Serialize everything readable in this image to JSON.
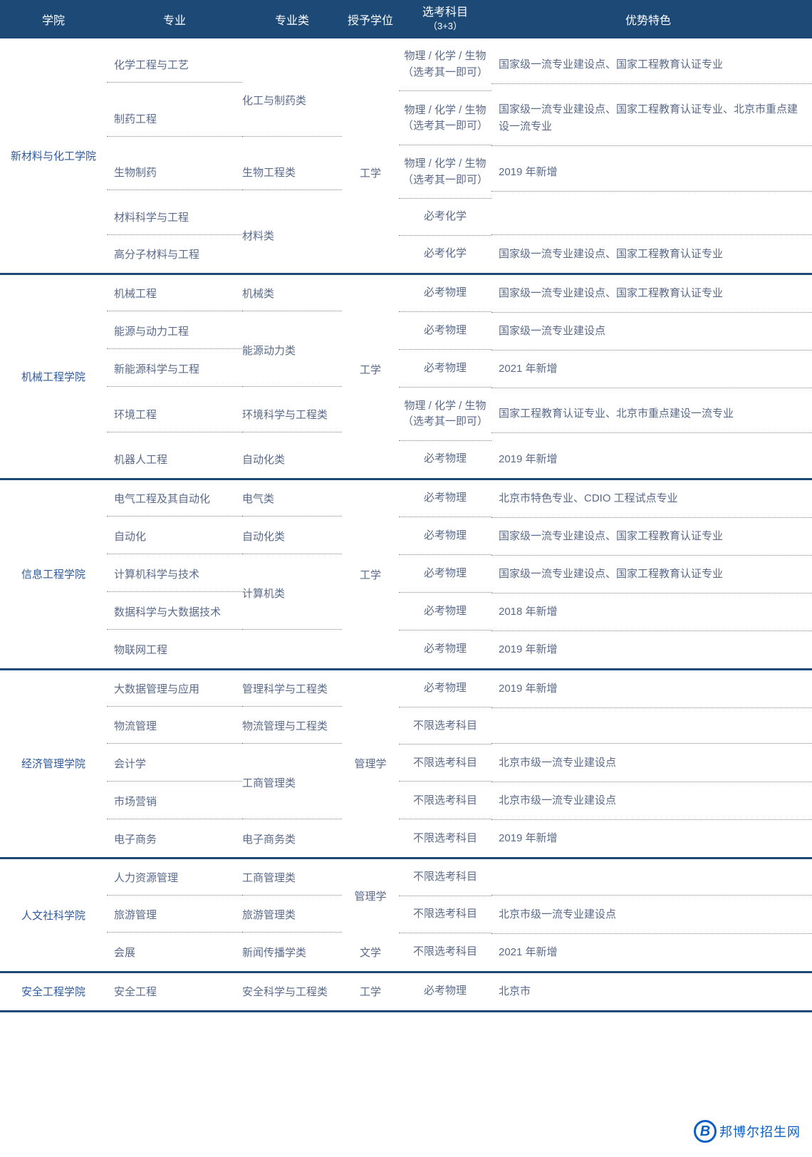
{
  "header": {
    "col1": "学院",
    "col2": "专业",
    "col3": "专业类",
    "col4": "授予学位",
    "col5a": "选考科目",
    "col5b": "（3+3）",
    "col6": "优势特色"
  },
  "colleges": [
    {
      "name": "新材料与化工学院",
      "degree": "工学",
      "rows": [
        {
          "major": "化学工程与工艺",
          "cat": "",
          "subj": "物理 / 化学 / 生物（选考其一即可）",
          "feat": "国家级一流专业建设点、国家工程教育认证专业"
        },
        {
          "major": "制药工程",
          "cat": "化工与制药类",
          "catspan": "above",
          "subj": "物理 / 化学 / 生物（选考其一即可）",
          "feat": "国家级一流专业建设点、国家工程教育认证专业、北京市重点建设一流专业"
        },
        {
          "major": "生物制药",
          "cat": "生物工程类",
          "subj": "物理 / 化学 / 生物（选考其一即可）",
          "feat": "2019 年新增"
        },
        {
          "major": "材料科学与工程",
          "cat": "",
          "subj": "必考化学",
          "feat": ""
        },
        {
          "major": "高分子材料与工程",
          "cat": "材料类",
          "catspan": "above",
          "subj": "必考化学",
          "feat": "国家级一流专业建设点、国家工程教育认证专业"
        }
      ]
    },
    {
      "name": "机械工程学院",
      "degree": "工学",
      "rows": [
        {
          "major": "机械工程",
          "cat": "机械类",
          "subj": "必考物理",
          "feat": "国家级一流专业建设点、国家工程教育认证专业"
        },
        {
          "major": "能源与动力工程",
          "cat": "",
          "subj": "必考物理",
          "feat": "国家级一流专业建设点"
        },
        {
          "major": "新能源科学与工程",
          "cat": "能源动力类",
          "catspan": "above",
          "subj": "必考物理",
          "feat": "2021 年新增"
        },
        {
          "major": "环境工程",
          "cat": "环境科学与工程类",
          "subj": "物理 / 化学 / 生物（选考其一即可）",
          "feat": "国家工程教育认证专业、北京市重点建设一流专业"
        },
        {
          "major": "机器人工程",
          "cat": "自动化类",
          "subj": "必考物理",
          "feat": "2019 年新增"
        }
      ]
    },
    {
      "name": "信息工程学院",
      "degree": "工学",
      "rows": [
        {
          "major": "电气工程及其自动化",
          "cat": "电气类",
          "subj": "必考物理",
          "feat": "北京市特色专业、CDIO 工程试点专业"
        },
        {
          "major": "自动化",
          "cat": "自动化类",
          "subj": "必考物理",
          "feat": "国家级一流专业建设点、国家工程教育认证专业"
        },
        {
          "major": "计算机科学与技术",
          "cat": "",
          "subj": "必考物理",
          "feat": "国家级一流专业建设点、国家工程教育认证专业"
        },
        {
          "major": "数据科学与大数据技术",
          "cat": "计算机类",
          "catspan": "above",
          "subj": "必考物理",
          "feat": "2018 年新增"
        },
        {
          "major": "物联网工程",
          "cat": "",
          "subj": "必考物理",
          "feat": "2019 年新增"
        }
      ]
    },
    {
      "name": "经济管理学院",
      "degree": "管理学",
      "rows": [
        {
          "major": "大数据管理与应用",
          "cat": "管理科学与工程类",
          "subj": "必考物理",
          "feat": "2019 年新增"
        },
        {
          "major": "物流管理",
          "cat": "物流管理与工程类",
          "subj": "不限选考科目",
          "feat": ""
        },
        {
          "major": "会计学",
          "cat": "",
          "subj": "不限选考科目",
          "feat": "北京市级一流专业建设点"
        },
        {
          "major": "市场营销",
          "cat": "工商管理类",
          "catspan": "above",
          "subj": "不限选考科目",
          "feat": "北京市级一流专业建设点"
        },
        {
          "major": "电子商务",
          "cat": "电子商务类",
          "subj": "不限选考科目",
          "feat": "2019 年新增"
        }
      ]
    },
    {
      "name": "人文社科学院",
      "degree": "",
      "rows": [
        {
          "major": "人力资源管理",
          "cat": "工商管理类",
          "deg": "",
          "subj": "不限选考科目",
          "feat": ""
        },
        {
          "major": "旅游管理",
          "cat": "旅游管理类",
          "deg": "管理学",
          "subj": "不限选考科目",
          "feat": "北京市级一流专业建设点"
        },
        {
          "major": "会展",
          "cat": "新闻传播学类",
          "deg": "文学",
          "subj": "不限选考科目",
          "feat": "2021 年新增"
        }
      ]
    },
    {
      "name": "安全工程学院",
      "degree": "工学",
      "rows": [
        {
          "major": "安全工程",
          "cat": "安全科学与工程类",
          "subj": "必考物理",
          "feat": "北京市"
        }
      ]
    }
  ],
  "watermark": {
    "icon": "B",
    "text": "邦博尔招生网"
  }
}
